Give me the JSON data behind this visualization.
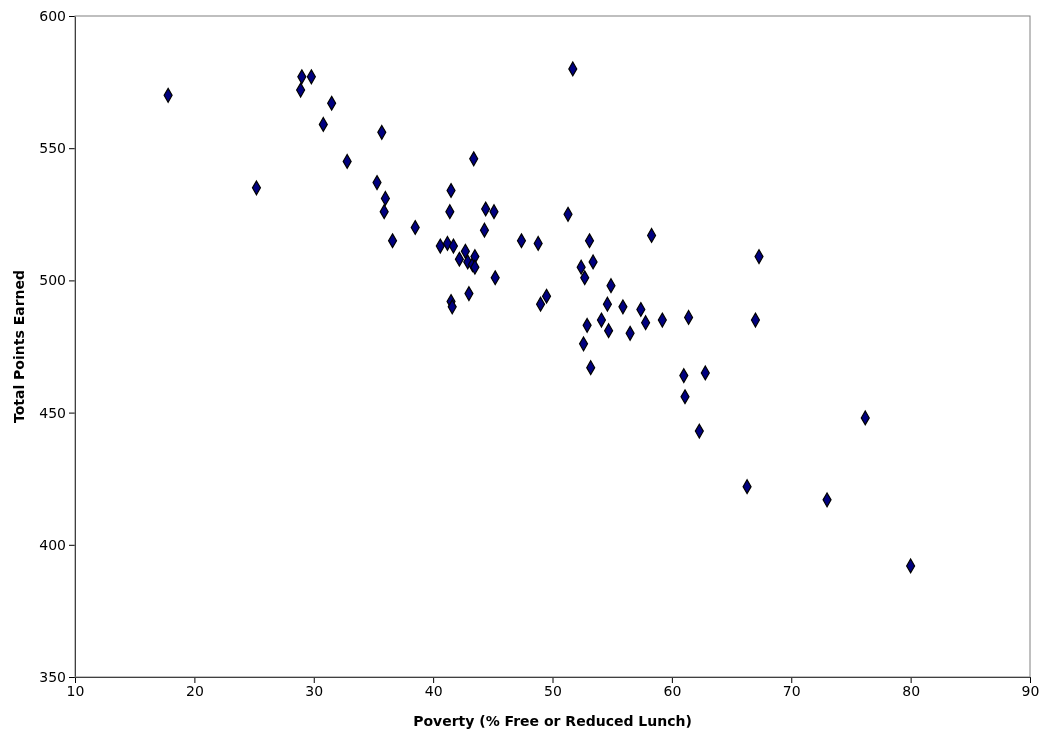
{
  "chart_data": {
    "type": "scatter",
    "xlabel": "Poverty (% Free or Reduced Lunch)",
    "ylabel": "Total Points Earned",
    "xlim": [
      10,
      90
    ],
    "xticks": [
      10,
      20,
      30,
      40,
      50,
      60,
      70,
      80,
      90
    ],
    "ylim": [
      350,
      600
    ],
    "yticks": [
      350,
      400,
      450,
      500,
      550,
      600
    ],
    "grid": false,
    "marker": "diamond",
    "series": [
      {
        "color": "#000080",
        "x": [
          17.8,
          25.2,
          29,
          29.8,
          28.9,
          31.5,
          30.8,
          32.8,
          35.7,
          35.3,
          36,
          35.9,
          36.6,
          38.5,
          40.6,
          41.2,
          41.5,
          41.4,
          41.7,
          41.5,
          41.6,
          42.2,
          42.7,
          42.9,
          43.3,
          43.5,
          43.5,
          43,
          43.4,
          44.3,
          44.4,
          45.1,
          45.2,
          47.4,
          48.8,
          49,
          49.5,
          51.3,
          51.7,
          52.4,
          52.7,
          52.6,
          52.9,
          53.1,
          53.4,
          53.2,
          54.1,
          54.6,
          54.9,
          54.7,
          55.9,
          56.5,
          57.4,
          57.8,
          58.3,
          59.2,
          61,
          61.1,
          61.4,
          62.3,
          62.8,
          66.3,
          67,
          67.3,
          73,
          76.2,
          80
        ],
        "values": [
          570,
          535,
          577,
          577,
          572,
          567,
          559,
          545,
          556,
          537,
          531,
          526,
          515,
          520,
          513,
          514,
          534,
          526,
          513,
          492,
          490,
          508,
          511,
          507,
          506,
          509,
          505,
          495,
          546,
          519,
          527,
          526,
          501,
          515,
          514,
          491,
          494,
          525,
          580,
          505,
          501,
          476,
          483,
          515,
          507,
          467,
          485,
          491,
          498,
          481,
          490,
          480,
          489,
          484,
          517,
          485,
          464,
          456,
          486,
          443,
          465,
          422,
          485,
          509,
          417,
          448,
          392
        ]
      }
    ]
  }
}
